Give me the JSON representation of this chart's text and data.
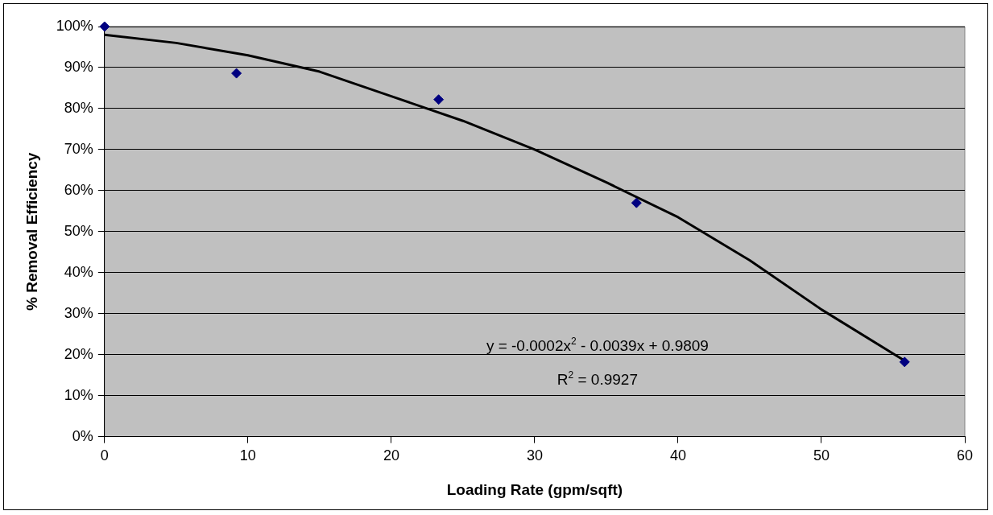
{
  "chart_data": {
    "type": "scatter",
    "xlabel": "Loading Rate (gpm/sqft)",
    "ylabel": "% Removal Efficiency",
    "xlim": [
      0,
      60
    ],
    "xticks": [
      0,
      10,
      20,
      30,
      40,
      50,
      60
    ],
    "ylim": [
      0,
      100
    ],
    "yticks": [
      {
        "value": 0,
        "label": "0%"
      },
      {
        "value": 10,
        "label": "10%"
      },
      {
        "value": 20,
        "label": "20%"
      },
      {
        "value": 30,
        "label": "30%"
      },
      {
        "value": 40,
        "label": "40%"
      },
      {
        "value": 50,
        "label": "50%"
      },
      {
        "value": 60,
        "label": "60%"
      },
      {
        "value": 70,
        "label": "70%"
      },
      {
        "value": 80,
        "label": "80%"
      },
      {
        "value": 90,
        "label": "90%"
      },
      {
        "value": 100,
        "label": "100%"
      }
    ],
    "grid": "y",
    "legend": false,
    "series": [
      {
        "marker": "diamond",
        "color": "#000080",
        "x": [
          0,
          9.2,
          23.3,
          37.1,
          55.8
        ],
        "values": [
          100,
          88.6,
          82.2,
          57,
          18.2
        ]
      },
      {
        "type": "line",
        "marker": "none",
        "line_style": "solid",
        "color": "#000000",
        "x": [
          0,
          5,
          10,
          15,
          20,
          25,
          30,
          35,
          40,
          45,
          50,
          55.8
        ],
        "values": [
          98,
          96,
          93,
          89,
          83,
          77,
          70,
          62,
          53.5,
          43,
          31,
          18.5
        ]
      }
    ],
    "annotations": [
      "y = -0.0002x$^{2}$ - 0.0039x + 0.9809",
      "R$^{2}$ = 0.9927"
    ]
  }
}
